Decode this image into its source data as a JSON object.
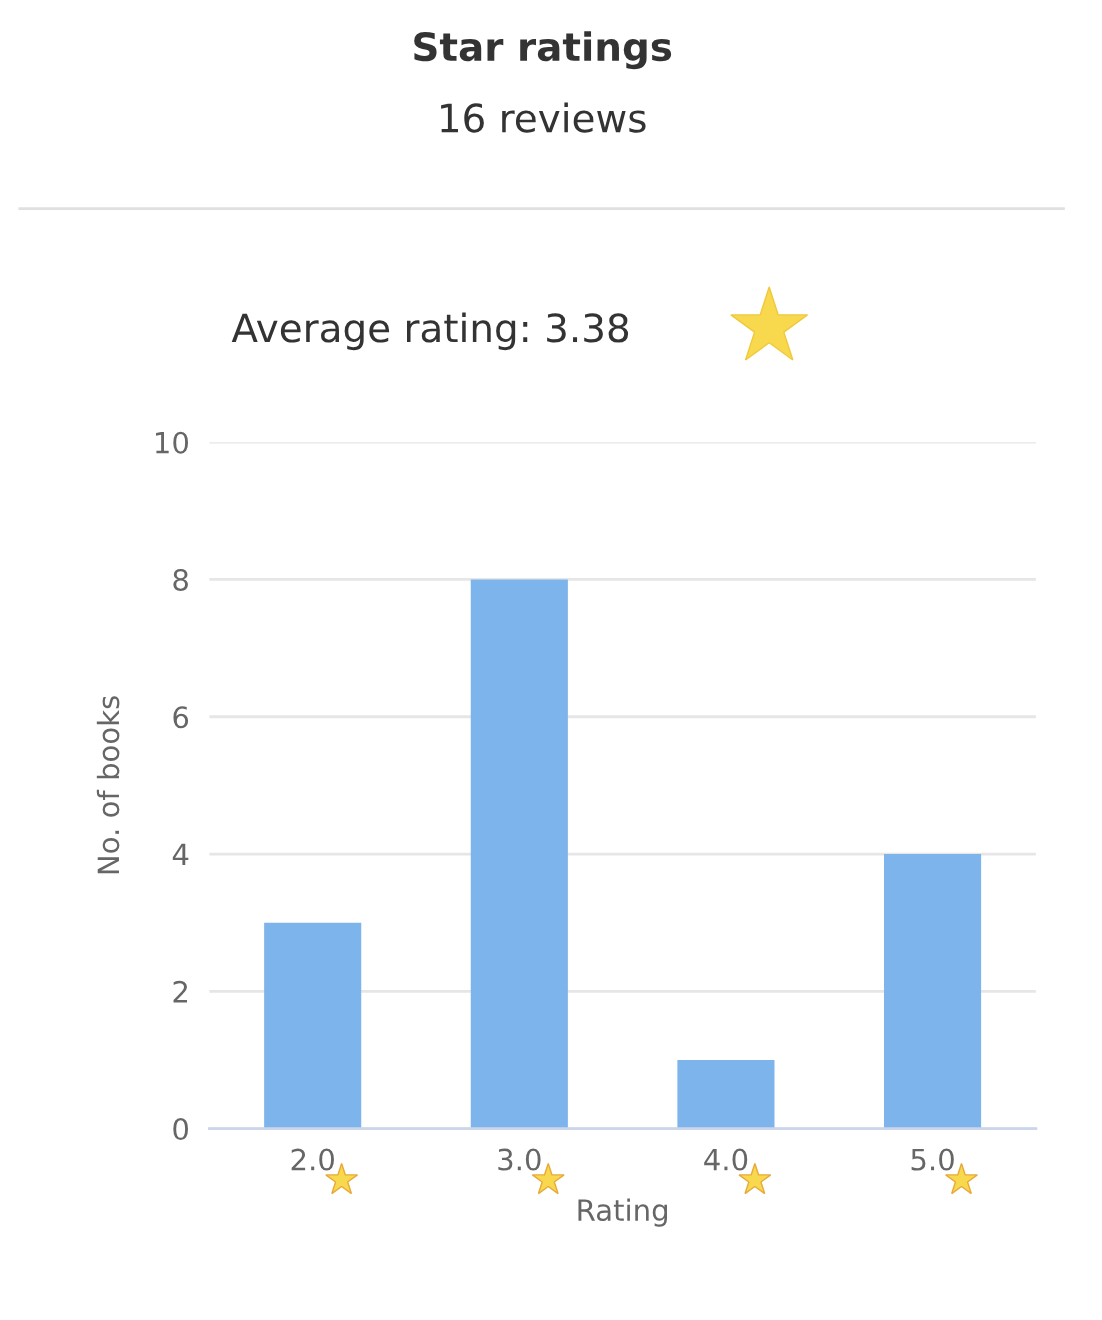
{
  "chart_data": {
    "type": "bar",
    "title": "Star ratings",
    "subtitle": "16 reviews",
    "annotations": [
      "Average rating: 3.38"
    ],
    "categories": [
      "2.0",
      "3.0",
      "4.0",
      "5.0"
    ],
    "values": [
      3,
      8,
      1,
      4
    ],
    "color": "#7cb4eb",
    "xlabel": "Rating",
    "ylabel": "No. of books",
    "ylim": [
      0,
      10
    ],
    "yticks": [
      0,
      2,
      4,
      6,
      8,
      10
    ],
    "grid": "y"
  }
}
